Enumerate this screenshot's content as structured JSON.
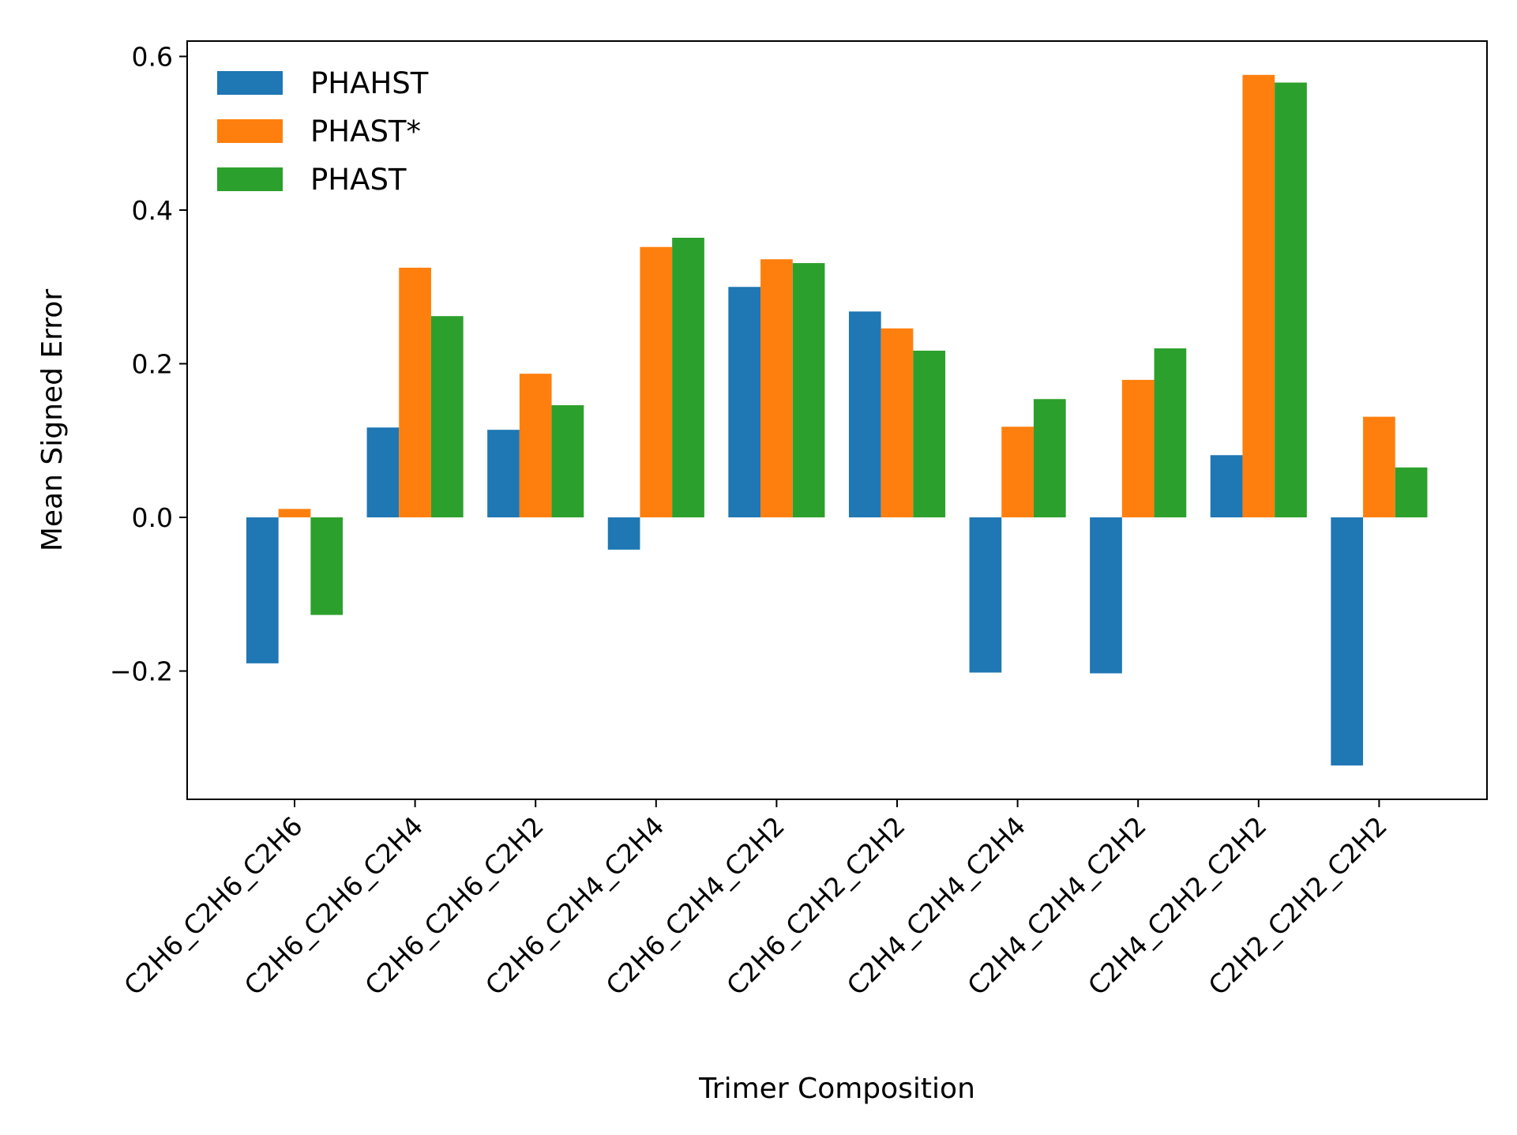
{
  "chart_data": {
    "type": "bar",
    "title": "",
    "xlabel": "Trimer Composition",
    "ylabel": "Mean Signed Error",
    "categories": [
      "C2H6_C2H6_C2H6",
      "C2H6_C2H6_C2H4",
      "C2H6_C2H6_C2H2",
      "C2H6_C2H4_C2H4",
      "C2H6_C2H4_C2H2",
      "C2H6_C2H2_C2H2",
      "C2H4_C2H4_C2H4",
      "C2H4_C2H4_C2H2",
      "C2H4_C2H2_C2H2",
      "C2H2_C2H2_C2H2"
    ],
    "series": [
      {
        "name": "PHAHST",
        "color": "#1f77b4",
        "values": [
          -0.19,
          0.117,
          0.114,
          -0.042,
          0.3,
          0.268,
          -0.202,
          -0.203,
          0.081,
          -0.323
        ]
      },
      {
        "name": "PHAST*",
        "color": "#ff7f0e",
        "values": [
          0.011,
          0.325,
          0.187,
          0.352,
          0.336,
          0.246,
          0.118,
          0.179,
          0.576,
          0.131
        ]
      },
      {
        "name": "PHAST",
        "color": "#2ca02c",
        "values": [
          -0.127,
          0.262,
          0.146,
          0.364,
          0.331,
          0.217,
          0.154,
          0.22,
          0.566,
          0.065
        ]
      }
    ],
    "ylim": [
      -0.367,
      0.62
    ],
    "yticks": [
      -0.2,
      0.0,
      0.2,
      0.4,
      0.6
    ],
    "ytick_labels": [
      "−0.2",
      "0.0",
      "0.2",
      "0.4",
      "0.6"
    ],
    "grid": false,
    "legend_position": "top-left"
  }
}
